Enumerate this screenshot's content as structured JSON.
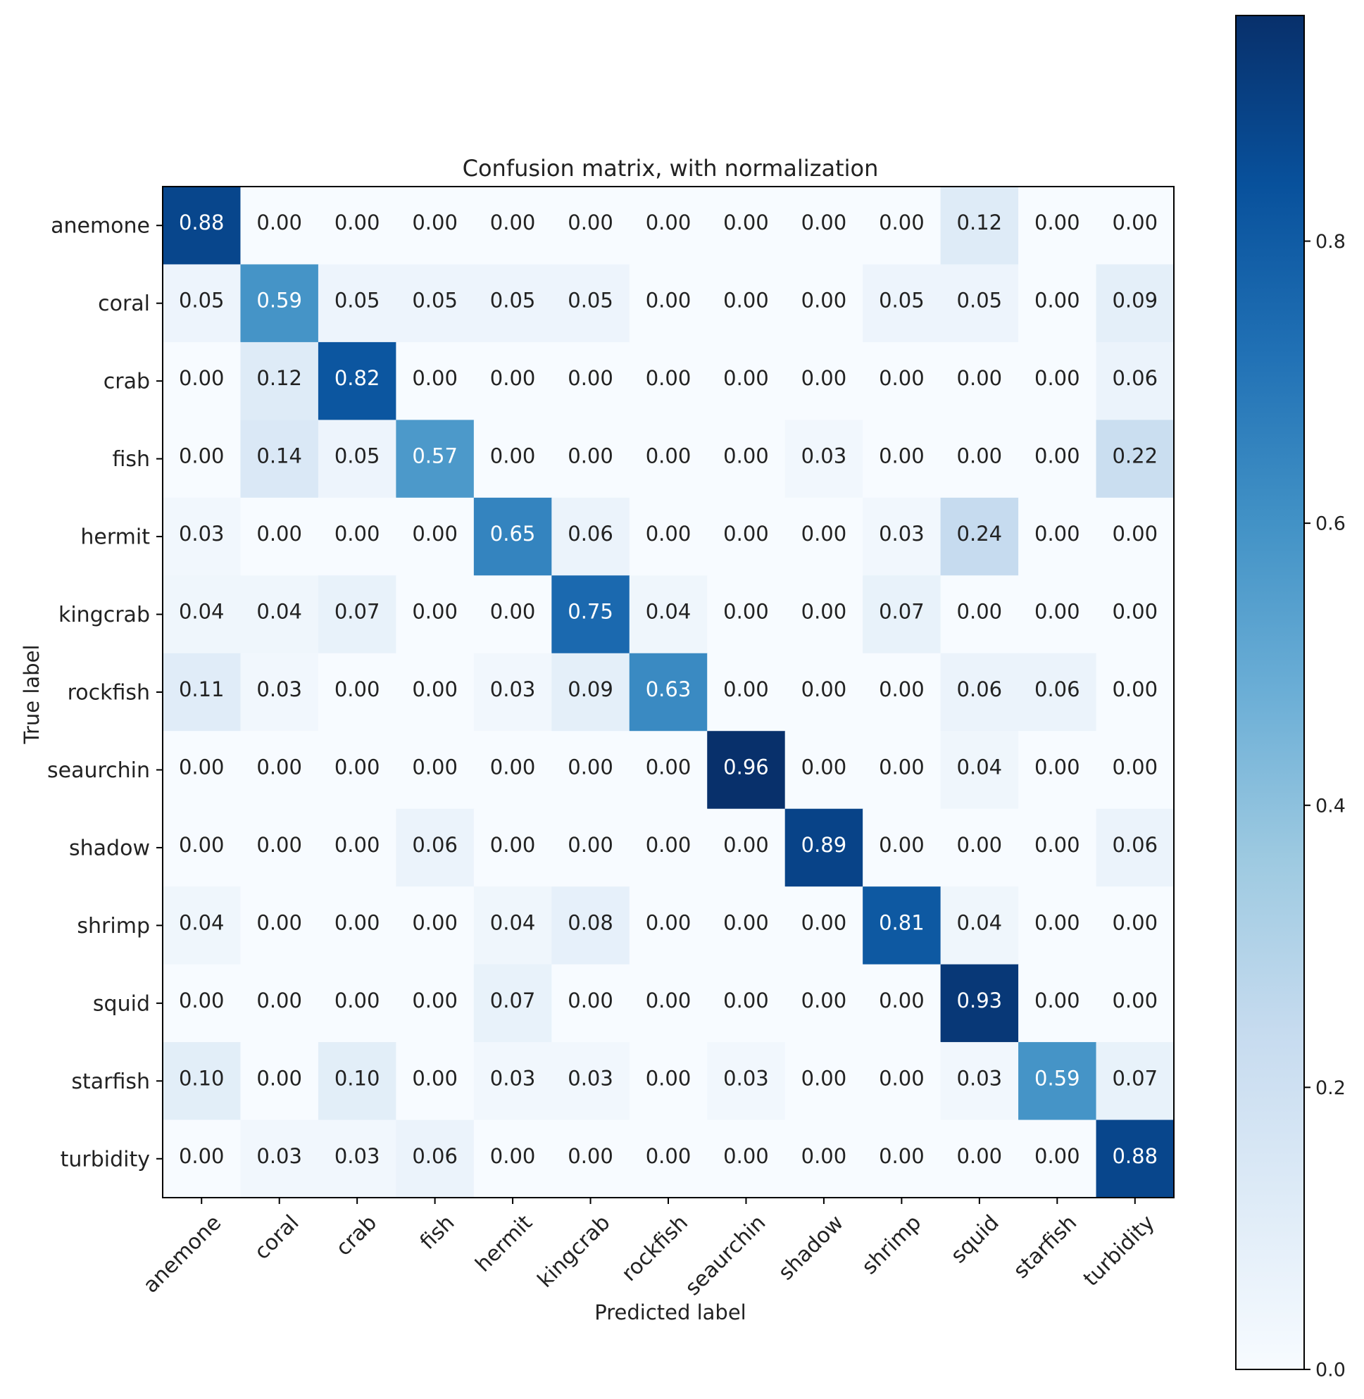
{
  "chart_data": {
    "type": "heatmap",
    "title": "Confusion matrix, with normalization",
    "xlabel": "Predicted label",
    "ylabel": "True label",
    "x_categories": [
      "anemone",
      "coral",
      "crab",
      "fish",
      "hermit",
      "kingcrab",
      "rockfish",
      "seaurchin",
      "shadow",
      "shrimp",
      "squid",
      "starfish",
      "turbidity"
    ],
    "y_categories": [
      "anemone",
      "coral",
      "crab",
      "fish",
      "hermit",
      "kingcrab",
      "rockfish",
      "seaurchin",
      "shadow",
      "shrimp",
      "squid",
      "starfish",
      "turbidity"
    ],
    "values": [
      [
        0.88,
        0.0,
        0.0,
        0.0,
        0.0,
        0.0,
        0.0,
        0.0,
        0.0,
        0.0,
        0.12,
        0.0,
        0.0
      ],
      [
        0.05,
        0.59,
        0.05,
        0.05,
        0.05,
        0.05,
        0.0,
        0.0,
        0.0,
        0.05,
        0.05,
        0.0,
        0.09
      ],
      [
        0.0,
        0.12,
        0.82,
        0.0,
        0.0,
        0.0,
        0.0,
        0.0,
        0.0,
        0.0,
        0.0,
        0.0,
        0.06
      ],
      [
        0.0,
        0.14,
        0.05,
        0.57,
        0.0,
        0.0,
        0.0,
        0.0,
        0.03,
        0.0,
        0.0,
        0.0,
        0.22
      ],
      [
        0.03,
        0.0,
        0.0,
        0.0,
        0.65,
        0.06,
        0.0,
        0.0,
        0.0,
        0.03,
        0.24,
        0.0,
        0.0
      ],
      [
        0.04,
        0.04,
        0.07,
        0.0,
        0.0,
        0.75,
        0.04,
        0.0,
        0.0,
        0.07,
        0.0,
        0.0,
        0.0
      ],
      [
        0.11,
        0.03,
        0.0,
        0.0,
        0.03,
        0.09,
        0.63,
        0.0,
        0.0,
        0.0,
        0.06,
        0.06,
        0.0
      ],
      [
        0.0,
        0.0,
        0.0,
        0.0,
        0.0,
        0.0,
        0.0,
        0.96,
        0.0,
        0.0,
        0.04,
        0.0,
        0.0
      ],
      [
        0.0,
        0.0,
        0.0,
        0.06,
        0.0,
        0.0,
        0.0,
        0.0,
        0.89,
        0.0,
        0.0,
        0.0,
        0.06
      ],
      [
        0.04,
        0.0,
        0.0,
        0.0,
        0.04,
        0.08,
        0.0,
        0.0,
        0.0,
        0.81,
        0.04,
        0.0,
        0.0
      ],
      [
        0.0,
        0.0,
        0.0,
        0.0,
        0.07,
        0.0,
        0.0,
        0.0,
        0.0,
        0.0,
        0.93,
        0.0,
        0.0
      ],
      [
        0.1,
        0.0,
        0.1,
        0.0,
        0.03,
        0.03,
        0.0,
        0.03,
        0.0,
        0.0,
        0.03,
        0.59,
        0.07
      ],
      [
        0.0,
        0.03,
        0.03,
        0.06,
        0.0,
        0.0,
        0.0,
        0.0,
        0.0,
        0.0,
        0.0,
        0.0,
        0.88
      ]
    ],
    "colormap": "Blues",
    "colorbar": {
      "range": [
        0.0,
        0.96
      ],
      "ticks": [
        0.0,
        0.2,
        0.4,
        0.6,
        0.8
      ],
      "tick_labels": [
        "0.0",
        "0.2",
        "0.4",
        "0.6",
        "0.8"
      ]
    },
    "value_format": "0.00",
    "grid": false
  }
}
